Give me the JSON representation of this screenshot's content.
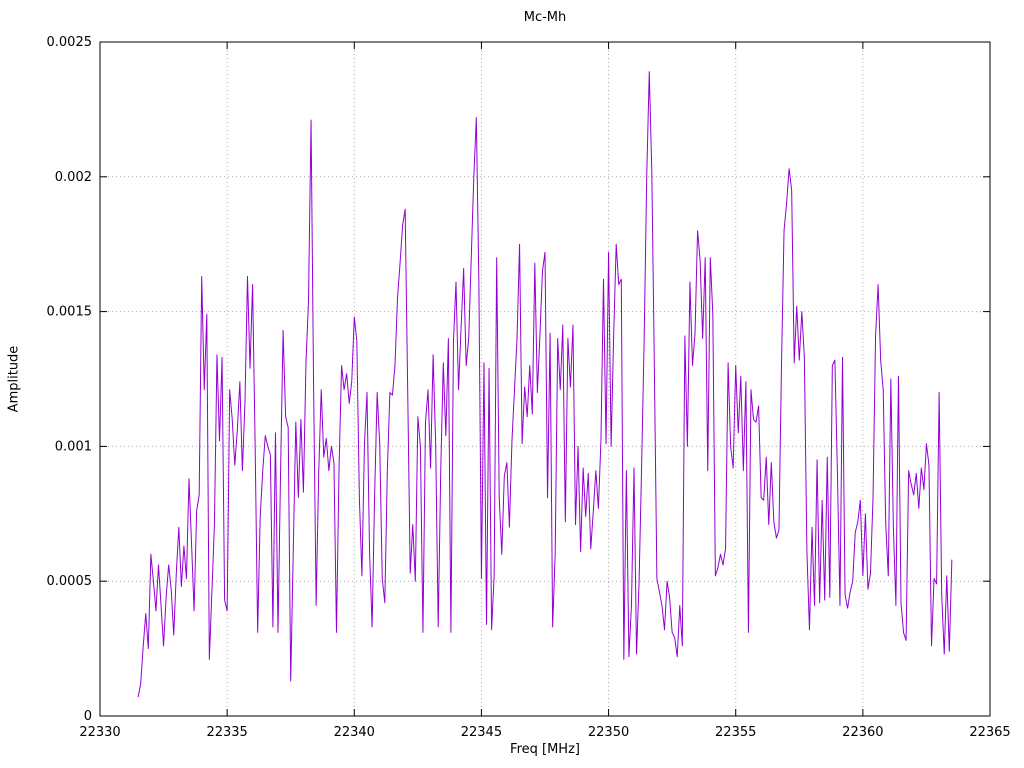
{
  "chart_data": {
    "type": "line",
    "title": "Mc-Mh",
    "xlabel": "Freq [MHz]",
    "ylabel": "Amplitude",
    "x_range": [
      22330,
      22365
    ],
    "y_range": [
      0,
      0.0025
    ],
    "grid": true,
    "legend": "none",
    "line_color": "#9400d3",
    "grid_color": "#aaaaaa",
    "axis_color": "#000000",
    "x_ticks": [
      {
        "value": 22330,
        "label": "22330"
      },
      {
        "value": 22335,
        "label": "22335"
      },
      {
        "value": 22340,
        "label": "22340"
      },
      {
        "value": 22345,
        "label": "22345"
      },
      {
        "value": 22350,
        "label": "22350"
      },
      {
        "value": 22355,
        "label": "22355"
      },
      {
        "value": 22360,
        "label": "22360"
      },
      {
        "value": 22365,
        "label": "22365"
      }
    ],
    "y_ticks": [
      {
        "value": 0,
        "label": "0"
      },
      {
        "value": 0.0005,
        "label": "0.0005"
      },
      {
        "value": 0.001,
        "label": "0.001"
      },
      {
        "value": 0.0015,
        "label": "0.0015"
      },
      {
        "value": 0.002,
        "label": "0.002"
      },
      {
        "value": 0.0025,
        "label": "0.0025"
      }
    ],
    "series": [
      {
        "name": "Mc-Mh",
        "x_start": 22331.5,
        "x_step": 0.1,
        "values": [
          7e-05,
          0.00012,
          0.00026,
          0.00038,
          0.00025,
          0.0006,
          0.0005,
          0.00039,
          0.00056,
          0.00041,
          0.00026,
          0.00044,
          0.00056,
          0.00047,
          0.0003,
          0.00053,
          0.0007,
          0.00048,
          0.00063,
          0.00051,
          0.00088,
          0.00064,
          0.00039,
          0.00076,
          0.00082,
          0.00163,
          0.00121,
          0.00149,
          0.00021,
          0.00046,
          0.00071,
          0.00134,
          0.00102,
          0.00133,
          0.00043,
          0.00039,
          0.00121,
          0.0011,
          0.00093,
          0.00106,
          0.00124,
          0.00091,
          0.00116,
          0.00163,
          0.00129,
          0.0016,
          0.00101,
          0.00031,
          0.00074,
          0.00091,
          0.00104,
          0.001,
          0.00097,
          0.00033,
          0.00105,
          0.00031,
          0.0009,
          0.00143,
          0.00111,
          0.00107,
          0.00013,
          0.00061,
          0.00109,
          0.00081,
          0.0011,
          0.00083,
          0.00131,
          0.00154,
          0.00221,
          0.00122,
          0.00041,
          0.0009,
          0.00121,
          0.00096,
          0.00103,
          0.00091,
          0.001,
          0.00094,
          0.00031,
          0.00092,
          0.0013,
          0.00121,
          0.00127,
          0.00116,
          0.00124,
          0.00148,
          0.00139,
          0.00081,
          0.00052,
          0.00101,
          0.0012,
          0.00061,
          0.00033,
          0.00082,
          0.0012,
          0.00101,
          0.00051,
          0.00042,
          0.00091,
          0.0012,
          0.00119,
          0.0013,
          0.00155,
          0.00168,
          0.00182,
          0.00188,
          0.00121,
          0.00053,
          0.00071,
          0.0005,
          0.00111,
          0.001,
          0.00031,
          0.00109,
          0.00121,
          0.00092,
          0.00134,
          0.00101,
          0.00033,
          0.00091,
          0.00131,
          0.00104,
          0.0014,
          0.00031,
          0.00139,
          0.00161,
          0.00121,
          0.00144,
          0.00166,
          0.0013,
          0.0014,
          0.0017,
          0.002,
          0.00222,
          0.0016,
          0.00051,
          0.00131,
          0.00034,
          0.00129,
          0.00032,
          0.00052,
          0.0017,
          0.00081,
          0.0006,
          0.00089,
          0.00094,
          0.0007,
          0.00102,
          0.00121,
          0.0014,
          0.00175,
          0.00101,
          0.00122,
          0.00111,
          0.0013,
          0.00112,
          0.00168,
          0.0012,
          0.00141,
          0.00165,
          0.00172,
          0.00081,
          0.00142,
          0.00033,
          0.0006,
          0.0014,
          0.00121,
          0.00145,
          0.00072,
          0.0014,
          0.00122,
          0.00145,
          0.00071,
          0.001,
          0.00061,
          0.00092,
          0.00074,
          0.0009,
          0.00062,
          0.00076,
          0.00091,
          0.00077,
          0.00102,
          0.00162,
          0.00101,
          0.00172,
          0.001,
          0.00141,
          0.00175,
          0.0016,
          0.00162,
          0.00021,
          0.00091,
          0.00022,
          0.00041,
          0.00092,
          0.00023,
          0.0005,
          0.00093,
          0.0014,
          0.002,
          0.00239,
          0.00202,
          0.0013,
          0.00051,
          0.00046,
          0.00041,
          0.00032,
          0.0005,
          0.00044,
          0.00031,
          0.00029,
          0.00022,
          0.00041,
          0.00026,
          0.00141,
          0.001,
          0.00161,
          0.0013,
          0.00142,
          0.0018,
          0.00169,
          0.0014,
          0.0017,
          0.00091,
          0.0017,
          0.00149,
          0.00052,
          0.00055,
          0.0006,
          0.00056,
          0.00062,
          0.00131,
          0.001,
          0.00092,
          0.0013,
          0.00105,
          0.00126,
          0.00091,
          0.00124,
          0.00031,
          0.00121,
          0.0011,
          0.00109,
          0.00115,
          0.00081,
          0.0008,
          0.00096,
          0.00071,
          0.00094,
          0.00072,
          0.00066,
          0.00069,
          0.0013,
          0.0018,
          0.0019,
          0.00203,
          0.00195,
          0.00131,
          0.00152,
          0.00132,
          0.0015,
          0.00133,
          0.00061,
          0.00032,
          0.0007,
          0.00041,
          0.00095,
          0.00042,
          0.0008,
          0.00043,
          0.00096,
          0.00044,
          0.0013,
          0.00132,
          0.0009,
          0.00041,
          0.00133,
          0.00045,
          0.0004,
          0.00046,
          0.0005,
          0.00068,
          0.00072,
          0.0008,
          0.00052,
          0.00075,
          0.00047,
          0.00053,
          0.00081,
          0.00141,
          0.0016,
          0.00132,
          0.00121,
          0.00071,
          0.00052,
          0.00125,
          0.0007,
          0.00041,
          0.00126,
          0.00042,
          0.00031,
          0.00028,
          0.00091,
          0.00086,
          0.00082,
          0.0009,
          0.00077,
          0.00092,
          0.00084,
          0.00101,
          0.00093,
          0.00026,
          0.00051,
          0.00049,
          0.0012,
          0.00045,
          0.00023,
          0.00052,
          0.00024,
          0.00058
        ]
      }
    ]
  }
}
